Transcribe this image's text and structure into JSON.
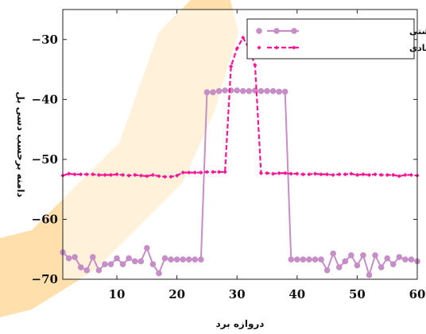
{
  "colors": {
    "series_returned": "#c68ec6",
    "series_proposed": "#ff1493",
    "axis": "#222222",
    "watermark": "#ffa000"
  },
  "chart_data": {
    "type": "line",
    "title": "",
    "xlabel": "دروازه برد",
    "ylabel": "دامنه برحسب دسی بل",
    "xlim": [
      1,
      60
    ],
    "ylim": [
      -70,
      -25
    ],
    "x_ticks": [
      10,
      20,
      30,
      40,
      50,
      60
    ],
    "y_ticks": [
      -30,
      -40,
      -50,
      -60,
      -70
    ],
    "grid": false,
    "legend_position": "top-right",
    "x": [
      1,
      2,
      3,
      4,
      5,
      6,
      7,
      8,
      9,
      10,
      11,
      12,
      13,
      14,
      15,
      16,
      17,
      18,
      19,
      20,
      21,
      22,
      23,
      24,
      25,
      26,
      27,
      28,
      29,
      30,
      31,
      32,
      33,
      34,
      35,
      36,
      37,
      38,
      39,
      40,
      41,
      42,
      43,
      44,
      45,
      46,
      47,
      48,
      49,
      50,
      51,
      52,
      53,
      54,
      55,
      56,
      57,
      58,
      59,
      60
    ],
    "series": [
      {
        "name": "سیگنال بازگشتی",
        "line_style": "solid",
        "marker": "circle",
        "values": [
          -65.5,
          -66.5,
          -66.3,
          -68,
          -68.5,
          -66.3,
          -68.5,
          -67.5,
          -67.5,
          -66.5,
          -67.5,
          -66.5,
          -67,
          -67,
          -64.8,
          -67.5,
          -69,
          -66.5,
          -66.7,
          -66.7,
          -66.7,
          -66.7,
          -66.7,
          -66.7,
          -38.8,
          -38.8,
          -38.6,
          -38.5,
          -38.5,
          -38.5,
          -38.6,
          -38.6,
          -38.5,
          -38.6,
          -38.6,
          -38.6,
          -38.7,
          -38.7,
          -66.7,
          -66.7,
          -66.7,
          -66.7,
          -66.7,
          -66.7,
          -68.5,
          -65.7,
          -68,
          -67,
          -66,
          -67.7,
          -66,
          -69.3,
          -66,
          -68,
          -66.5,
          -67.5,
          -66.3,
          -66.7,
          -66.7,
          -67
        ]
      },
      {
        "name": "آشکارساز کلاسیک پیشنهادی",
        "line_style": "dashed",
        "marker": "diamond",
        "values": [
          -52.7,
          -52.4,
          -52.5,
          -52.5,
          -52.5,
          -52.5,
          -52.6,
          -52.6,
          -52.6,
          -52.5,
          -52.6,
          -52.7,
          -52.6,
          -52.7,
          -52.8,
          -52.6,
          -52.8,
          -52.9,
          -52.9,
          -52.7,
          -52.2,
          -52.2,
          -52.2,
          -52.2,
          -52.1,
          -52.1,
          -52.1,
          -52.1,
          -34.5,
          -31.5,
          -29.7,
          -31.5,
          -34.3,
          -52.3,
          -52.3,
          -52.4,
          -52.3,
          -52.3,
          -52.4,
          -52.4,
          -52.5,
          -52.5,
          -52.4,
          -52.5,
          -52.5,
          -52.6,
          -52.5,
          -52.5,
          -52.4,
          -52.6,
          -52.5,
          -52.6,
          -52.5,
          -52.6,
          -52.6,
          -52.6,
          -52.8,
          -52.6,
          -52.6,
          -52.7
        ]
      }
    ]
  }
}
